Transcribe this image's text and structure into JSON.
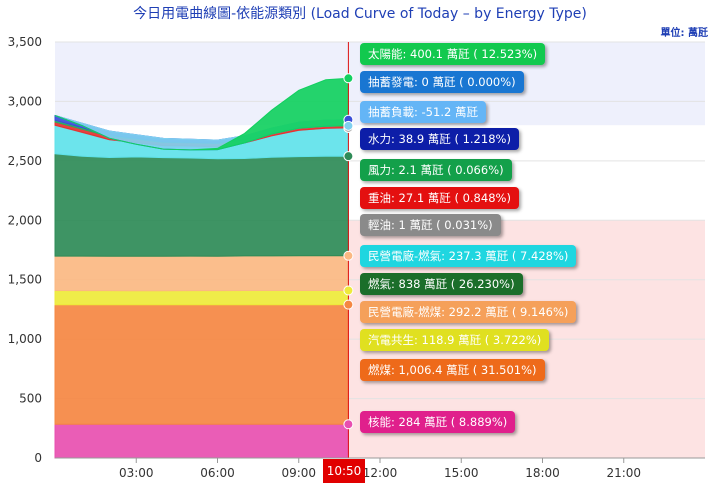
{
  "title": "今日用電曲線圖-依能源類別 (Load Curve of Today – by Energy Type)",
  "unit_label": "單位: 萬瓩",
  "current_time": "10:50",
  "tooltips": [
    {
      "text": "太陽能: 400.1 萬瓩 ( 12.523%)",
      "color": "#12c94e"
    },
    {
      "text": "抽蓄發電: 0 萬瓩 ( 0.000%)",
      "color": "#1976d2"
    },
    {
      "text": "抽蓄負載: -51.2 萬瓩",
      "color": "#64b5f6"
    },
    {
      "text": "水力: 38.9 萬瓩 ( 1.218%)",
      "color": "#0d1ea8"
    },
    {
      "text": "風力: 2.1 萬瓩 ( 0.066%)",
      "color": "#13a04a"
    },
    {
      "text": "重油: 27.1 萬瓩 ( 0.848%)",
      "color": "#e41010"
    },
    {
      "text": "輕油: 1 萬瓩 ( 0.031%)",
      "color": "#8a8a8a"
    },
    {
      "text": "民營電廠-燃氣: 237.3 萬瓩 ( 7.428%)",
      "color": "#1fd6e0"
    },
    {
      "text": "燃氣: 838 萬瓩 ( 26.230%)",
      "color": "#1b6e2a"
    },
    {
      "text": "民營電廠-燃煤: 292.2 萬瓩 ( 9.146%)",
      "color": "#f5a05a"
    },
    {
      "text": "汽電共生: 118.9 萬瓩 ( 3.722%)",
      "color": "#e0e020"
    },
    {
      "text": "燃煤: 1,006.4 萬瓩 ( 31.501%)",
      "color": "#ee6a1a"
    },
    {
      "text": "核能: 284 萬瓩 ( 8.889%)",
      "color": "#e0208c"
    }
  ],
  "chart_data": {
    "type": "area",
    "stacked": true,
    "x_ticks": [
      "03:00",
      "06:00",
      "09:00",
      "12:00",
      "15:00",
      "18:00",
      "21:00"
    ],
    "y_ticks": [
      "0",
      "500",
      "1,000",
      "1,500",
      "2,000",
      "2,500",
      "3,000",
      "3,500"
    ],
    "ylim": [
      0,
      3500
    ],
    "xlim_hours": [
      0,
      24
    ],
    "current_time_hours": 10.833,
    "plot_bands": [
      {
        "y_from": 2800,
        "y_to": 3500,
        "color": "#eef0fc",
        "x_from_hours": 0,
        "x_to_hours": 24
      },
      {
        "y_from": 0,
        "y_to": 2000,
        "color": "#fde3e3",
        "x_from_hours": 10.833,
        "x_to_hours": 24
      }
    ],
    "x_hours": [
      0,
      1,
      2,
      3,
      4,
      5,
      6,
      7,
      8,
      9,
      10,
      10.833
    ],
    "series": [
      {
        "name": "核能",
        "color": "#e84fb0",
        "values": [
          284,
          284,
          284,
          284,
          284,
          284,
          284,
          284,
          284,
          284,
          284,
          284
        ]
      },
      {
        "name": "燃煤",
        "color": "#f58742",
        "values": [
          1006,
          1006,
          1006,
          1006,
          1006,
          1006,
          1006,
          1006,
          1006,
          1006,
          1006,
          1006.4
        ]
      },
      {
        "name": "汽電共生",
        "color": "#eeea3a",
        "values": [
          119,
          118,
          118,
          117,
          117,
          118,
          118,
          119,
          119,
          119,
          119,
          118.9
        ]
      },
      {
        "name": "民營電廠-燃煤",
        "color": "#fbb882",
        "values": [
          290,
          291,
          290,
          291,
          290,
          291,
          290,
          291,
          291,
          292,
          292,
          292.2
        ]
      },
      {
        "name": "燃氣",
        "color": "#2e8b57",
        "values": [
          860,
          840,
          830,
          835,
          830,
          825,
          820,
          820,
          830,
          835,
          838,
          838
        ]
      },
      {
        "name": "民營電廠-燃氣",
        "color": "#5fe2ea",
        "values": [
          240,
          200,
          150,
          120,
          100,
          100,
          100,
          130,
          180,
          220,
          235,
          237.3
        ]
      },
      {
        "name": "輕油",
        "color": "#9a9a9a",
        "values": [
          1,
          1,
          1,
          1,
          1,
          1,
          1,
          1,
          1,
          1,
          1,
          1
        ]
      },
      {
        "name": "重油",
        "color": "#e63030",
        "values": [
          27,
          27,
          27,
          27,
          27,
          27,
          27,
          27,
          27,
          27,
          27,
          27.1
        ]
      },
      {
        "name": "風力",
        "color": "#27ae60",
        "values": [
          15,
          12,
          10,
          8,
          6,
          5,
          4,
          3,
          3,
          2,
          2,
          2.1
        ]
      },
      {
        "name": "水力",
        "color": "#3a4ed8",
        "values": [
          40,
          38,
          35,
          30,
          28,
          25,
          25,
          30,
          35,
          38,
          39,
          38.9
        ]
      },
      {
        "name": "抽蓄負載",
        "color": "#7fd0f0",
        "values": [
          0,
          -20,
          -60,
          -80,
          -90,
          -90,
          -80,
          -60,
          -50,
          -50,
          -51,
          -51.2
        ]
      },
      {
        "name": "抽蓄發電",
        "color": "#1976d2",
        "values": [
          0,
          0,
          0,
          0,
          0,
          0,
          0,
          0,
          0,
          0,
          0,
          0
        ]
      },
      {
        "name": "太陽能",
        "color": "#12d060",
        "values": [
          0,
          0,
          0,
          0,
          0,
          0,
          10,
          80,
          200,
          320,
          390,
          400.1
        ]
      }
    ]
  }
}
